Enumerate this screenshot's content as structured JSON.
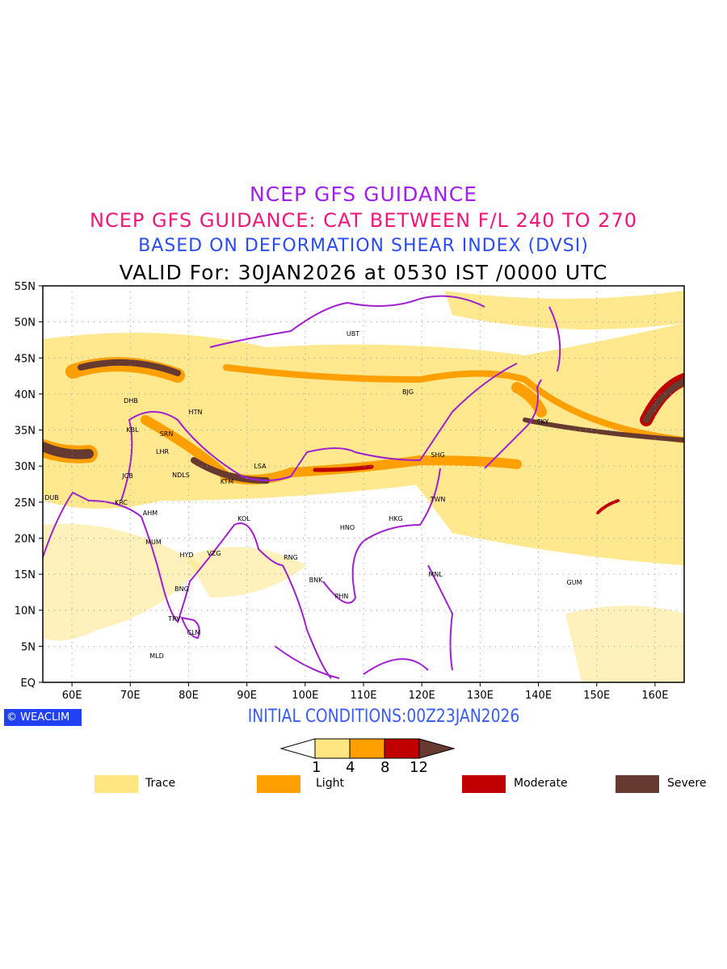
{
  "titles": {
    "line1": "NCEP GFS GUIDANCE",
    "line2": "NCEP GFS GUIDANCE: CAT BETWEEN F/L 240 TO 270",
    "line3": "BASED ON DEFORMATION SHEAR INDEX (DVSI)",
    "line4": "VALID For: 30JAN2026 at 0530 IST /0000 UTC"
  },
  "axes": {
    "lon_ticks": [
      "60E",
      "70E",
      "80E",
      "90E",
      "100E",
      "110E",
      "120E",
      "130E",
      "140E",
      "150E",
      "160E"
    ],
    "lat_ticks": [
      "EQ",
      "5N",
      "10N",
      "15N",
      "20N",
      "25N",
      "30N",
      "35N",
      "40N",
      "45N",
      "50N",
      "55N"
    ]
  },
  "cities": [
    "UBT",
    "BJG",
    "TKY",
    "SHG",
    "TWN",
    "HKG",
    "HNO",
    "RNG",
    "BNK",
    "PHN",
    "MNL",
    "GUM",
    "DHB",
    "HTN",
    "KBL",
    "SRN",
    "LHR",
    "JCB",
    "NDLS",
    "LSA",
    "KTM",
    "DUB",
    "KRC",
    "AHM",
    "KOL",
    "MUM",
    "HYD",
    "VZG",
    "BNG",
    "TRV",
    "CLM",
    "MLD"
  ],
  "logo": "WEACLIM",
  "initial_conditions": "INITIAL CONDITIONS:00Z23JAN2026",
  "colorbar": {
    "levels": [
      "1",
      "4",
      "8",
      "12"
    ],
    "colors": [
      "#ffe680",
      "#ffa000",
      "#c00000",
      "#663a30"
    ]
  },
  "legend": [
    {
      "label": "Trace",
      "color": "#ffe680"
    },
    {
      "label": "Light",
      "color": "#ffa000"
    },
    {
      "label": "Moderate",
      "color": "#c00000"
    },
    {
      "label": "Severe",
      "color": "#663a30"
    }
  ]
}
